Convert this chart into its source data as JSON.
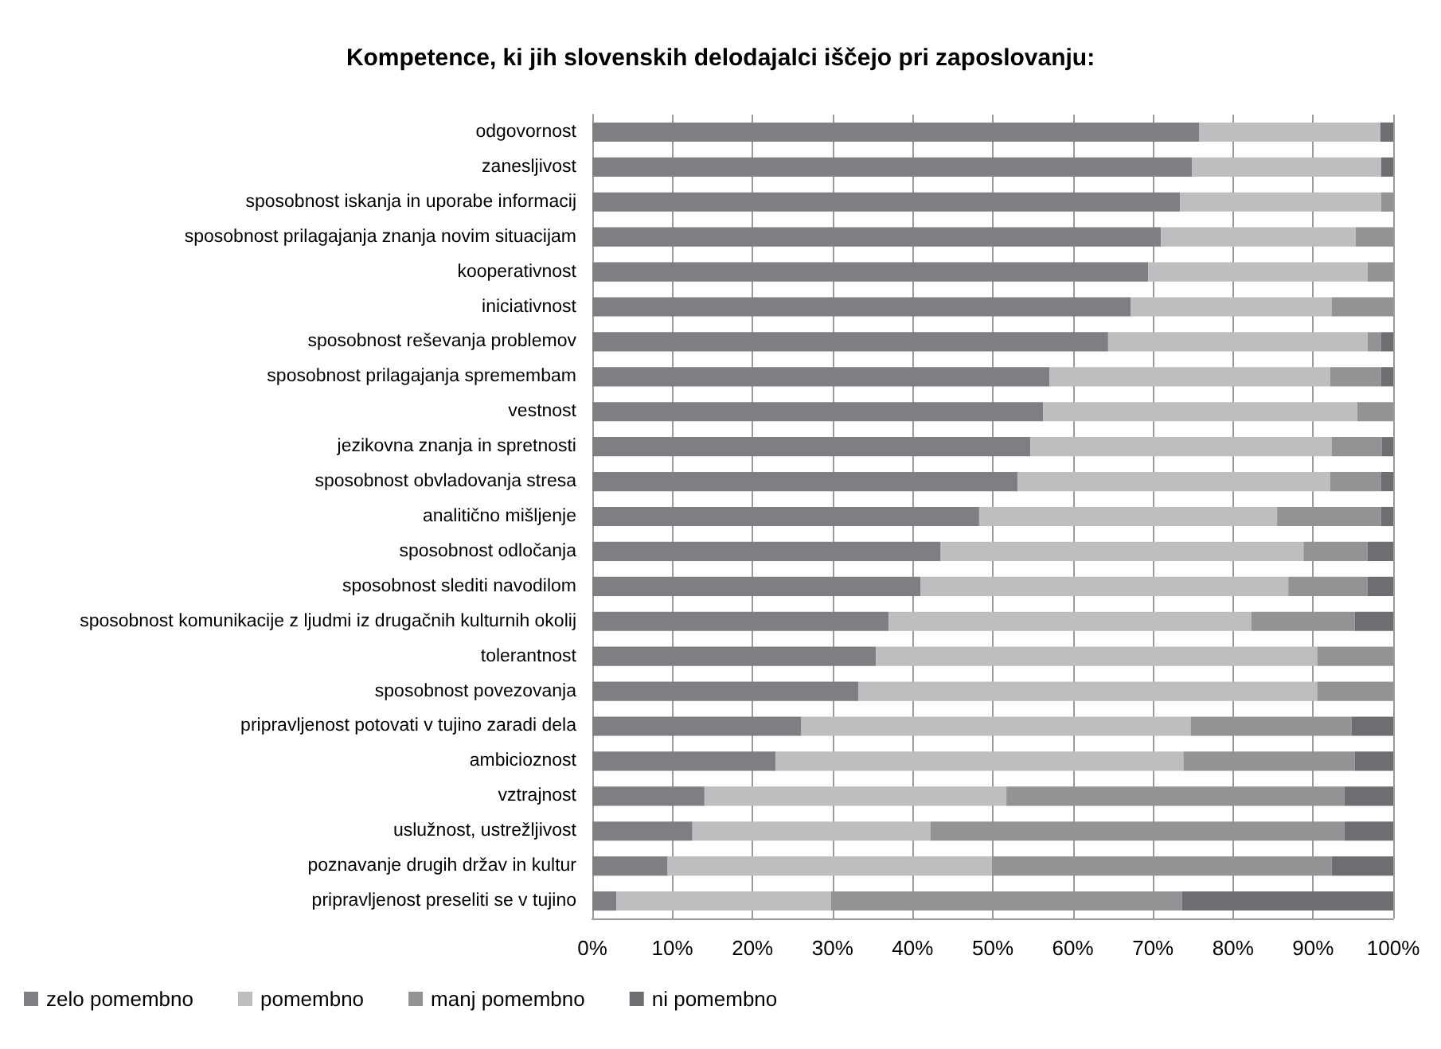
{
  "chart_data": {
    "type": "bar",
    "orientation": "horizontal",
    "stacked": true,
    "title": "Kompetence, ki jih slovenskih delodajalci iščejo pri zaposlovanju:",
    "categories": [
      "odgovornost",
      "zanesljivost",
      "sposobnost iskanja in uporabe informacij",
      "sposobnost prilagajanja znanja novim situacijam",
      "kooperativnost",
      "iniciativnost",
      "sposobnost reševanja problemov",
      "sposobnost prilagajanja spremembam",
      "vestnost",
      "jezikovna znanja in spretnosti",
      "sposobnost obvladovanja stresa",
      "analitično mišljenje",
      "sposobnost odločanja",
      "sposobnost slediti navodilom",
      "sposobnost komunikacije z ljudmi iz drugačnih kulturnih okolij",
      "tolerantnost",
      "sposobnost povezovanja",
      "pripravljenost potovati v tujino zaradi dela",
      "ambicioznost",
      "vztrajnost",
      "uslužnost, ustrežljivost",
      "poznavanje drugih držav in kultur",
      "pripravljenost preseliti se v tujino"
    ],
    "series": [
      {
        "name": "zelo pomembno",
        "color": "#7f7f83",
        "values": [
          75.8,
          74.9,
          73.4,
          71.0,
          69.4,
          67.2,
          64.4,
          57.1,
          56.3,
          54.7,
          53.1,
          48.3,
          43.5,
          41.0,
          37.0,
          35.4,
          33.2,
          26.1,
          22.9,
          14.0,
          12.5,
          9.4,
          3.0
        ]
      },
      {
        "name": "pomembno",
        "color": "#bdbec0",
        "values": [
          22.6,
          23.6,
          25.1,
          24.3,
          27.4,
          25.1,
          32.4,
          35.0,
          39.2,
          37.6,
          39.0,
          37.2,
          45.3,
          45.9,
          45.3,
          55.1,
          57.3,
          48.6,
          50.9,
          37.7,
          29.7,
          40.5,
          26.8
        ]
      },
      {
        "name": "manj pomembno",
        "color": "#939396",
        "values": [
          0,
          0,
          1.5,
          4.7,
          3.2,
          7.7,
          1.7,
          6.4,
          4.5,
          6.3,
          6.4,
          13.0,
          8.0,
          9.9,
          12.9,
          9.5,
          9.5,
          20.1,
          21.4,
          42.2,
          51.7,
          42.4,
          43.8
        ]
      },
      {
        "name": "ni pomembno",
        "color": "#6e6e72",
        "values": [
          1.6,
          1.5,
          0,
          0,
          0,
          0,
          1.5,
          1.5,
          0,
          1.4,
          1.5,
          1.5,
          3.2,
          3.2,
          4.8,
          0,
          0,
          5.2,
          4.8,
          6.1,
          6.1,
          7.7,
          26.4
        ]
      }
    ],
    "xlim": [
      0,
      100
    ],
    "xticks": [
      {
        "value": 0,
        "label": "0%"
      },
      {
        "value": 10,
        "label": "10%"
      },
      {
        "value": 20,
        "label": "20%"
      },
      {
        "value": 30,
        "label": "30%"
      },
      {
        "value": 40,
        "label": "40%"
      },
      {
        "value": 50,
        "label": "50%"
      },
      {
        "value": 60,
        "label": "60%"
      },
      {
        "value": 70,
        "label": "70%"
      },
      {
        "value": 80,
        "label": "80%"
      },
      {
        "value": 90,
        "label": "90%"
      },
      {
        "value": 100,
        "label": "100%"
      }
    ],
    "grid": "x",
    "legend": "bottom"
  }
}
